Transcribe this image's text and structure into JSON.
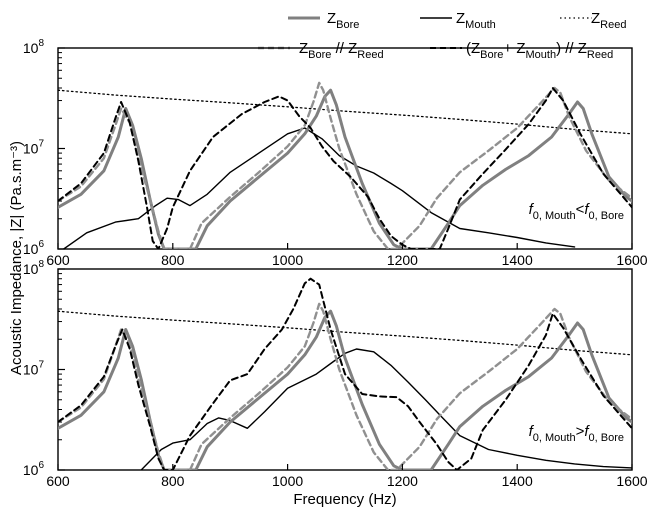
{
  "chart_data": {
    "type": "line",
    "xlabel": "Frequency (Hz)",
    "ylabel": "Acoustic Impedance, |Z| (Pa.s.m⁻³)",
    "xlim": [
      600,
      1600
    ],
    "ylim": [
      1000000,
      100000000
    ],
    "yscale": "log",
    "grid": false,
    "legend_placement": "top",
    "xticks": [
      "600",
      "800",
      "1000",
      "1200",
      "1400",
      "1600"
    ],
    "yticks": [
      {
        "base": "10",
        "exp": "6",
        "value": 1000000
      },
      {
        "base": "10",
        "exp": "7",
        "value": 10000000
      },
      {
        "base": "10",
        "exp": "8",
        "value": 100000000
      }
    ],
    "legend": [
      {
        "key": "bore",
        "text": "Z",
        "sub": "Bore",
        "suffix": "",
        "color": "#808080",
        "dash": "",
        "width": 3
      },
      {
        "key": "mouth",
        "text": "Z",
        "sub": "Mouth",
        "suffix": "",
        "color": "#000000",
        "dash": "",
        "width": 1.4
      },
      {
        "key": "reed",
        "text": "Z",
        "sub": "Reed",
        "suffix": "",
        "color": "#000000",
        "dash": "1.5,3",
        "width": 1.3
      },
      {
        "key": "bore_reed",
        "text": "Z",
        "sub": "Bore",
        "suffix": " // Z",
        "sub2": "Reed",
        "color": "#909090",
        "dash": "6,4",
        "width": 2.4
      },
      {
        "key": "bm_reed",
        "text": "(Z",
        "sub": "Bore",
        "suffix": "+ Z",
        "sub2": "Mouth",
        "suffix2": ") // Z",
        "sub3": "Reed",
        "color": "#000000",
        "dash": "6,4",
        "width": 2
      }
    ],
    "panels": [
      {
        "annotation": {
          "f": "f",
          "sub1": "0, Mouth",
          "op": "<",
          "sub2": "0, Bore"
        },
        "series": [
          {
            "name": "Z_Reed",
            "x": [
              600,
              700,
              800,
              900,
              1000,
              1100,
              1200,
              1300,
              1400,
              1500,
              1600
            ],
            "y": [
              38000000,
              34000000,
              31000000,
              28500000,
              26000000,
              23500000,
              21500000,
              19500000,
              17500000,
              15500000,
              14000000
            ]
          },
          {
            "name": "Z_Mouth",
            "x": [
              610,
              650,
              700,
              740,
              770,
              790,
              810,
              830,
              860,
              900,
              950,
              1000,
              1030,
              1060,
              1090,
              1120,
              1150,
              1180,
              1200,
              1250,
              1300,
              1350,
              1400,
              1450,
              1500
            ],
            "y": [
              1000000,
              1450000,
              1850000,
              2000000,
              2700000,
              3200000,
              3100000,
              2700000,
              3500000,
              5800000,
              9000000,
              14000000,
              16000000,
              12500000,
              8500000,
              6700000,
              5700000,
              4500000,
              3800000,
              2300000,
              1600000,
              1450000,
              1300000,
              1150000,
              1050000
            ]
          },
          {
            "name": "Z_Bore",
            "x": [
              600,
              640,
              680,
              705,
              718,
              730,
              745,
              760,
              775,
              785,
              840,
              860,
              900,
              950,
              1000,
              1030,
              1050,
              1065,
              1075,
              1085,
              1100,
              1130,
              1160,
              1185,
              1200,
              1250,
              1280,
              1300,
              1340,
              1380,
              1420,
              1460,
              1490,
              1505,
              1515,
              1530,
              1560,
              1590,
              1600
            ],
            "y": [
              2600000,
              3500000,
              6000000,
              13000000,
              25000000,
              17000000,
              8000000,
              3200000,
              1400000,
              1000000,
              1000000,
              1700000,
              3000000,
              5200000,
              9000000,
              14000000,
              21000000,
              33000000,
              38000000,
              27000000,
              13000000,
              4500000,
              1800000,
              1100000,
              1000000,
              1000000,
              1800000,
              2700000,
              4300000,
              6200000,
              8500000,
              13000000,
              22000000,
              29000000,
              25000000,
              14000000,
              5200000,
              3300000,
              3000000
            ]
          },
          {
            "name": "Z_Bore // Z_Reed",
            "x": [
              600,
              640,
              680,
              700,
              710,
              725,
              740,
              760,
              775,
              785,
              830,
              850,
              900,
              950,
              1000,
              1030,
              1045,
              1055,
              1062,
              1075,
              1090,
              1120,
              1150,
              1175,
              1190,
              1230,
              1260,
              1300,
              1350,
              1400,
              1440,
              1465,
              1475,
              1490,
              1520,
              1560,
              1600
            ],
            "y": [
              3000000,
              4200000,
              8000000,
              17000000,
              25000000,
              18000000,
              8000000,
              3200000,
              1500000,
              1000000,
              1000000,
              1800000,
              3300000,
              5800000,
              10500000,
              17000000,
              29000000,
              45000000,
              38000000,
              20000000,
              10000000,
              3500000,
              1500000,
              1000000,
              1000000,
              1700000,
              3200000,
              5800000,
              9500000,
              16000000,
              28000000,
              40000000,
              36000000,
              21000000,
              9500000,
              4800000,
              3200000
            ]
          },
          {
            "name": "(Z_Bore + Z_Mouth) // Z_Reed",
            "x": [
              600,
              640,
              680,
              700,
              710,
              725,
              740,
              755,
              765,
              775,
              790,
              800,
              830,
              870,
              920,
              960,
              985,
              1000,
              1020,
              1040,
              1060,
              1080,
              1110,
              1140,
              1160,
              1180,
              1200,
              1215,
              1225,
              1265,
              1280,
              1300,
              1340,
              1380,
              1420,
              1450,
              1462,
              1480,
              1510,
              1550,
              1600
            ],
            "y": [
              3000000,
              4500000,
              9000000,
              20000000,
              29000000,
              18000000,
              7500000,
              2600000,
              1200000,
              1000000,
              1600000,
              2600000,
              6000000,
              13000000,
              22000000,
              29000000,
              33000000,
              30000000,
              21000000,
              16000000,
              10500000,
              7500000,
              5200000,
              3300000,
              2000000,
              1350000,
              1100000,
              1000000,
              1000000,
              1000000,
              1600000,
              3100000,
              5600000,
              9800000,
              17500000,
              30000000,
              40000000,
              30000000,
              14000000,
              5600000,
              2600000
            ]
          }
        ]
      },
      {
        "annotation": {
          "f": "f",
          "sub1": "0, Mouth",
          "op": ">",
          "sub2": "0, Bore"
        },
        "series": [
          {
            "name": "Z_Reed",
            "x": [
              600,
              700,
              800,
              900,
              1000,
              1100,
              1200,
              1300,
              1400,
              1500,
              1600
            ],
            "y": [
              38000000,
              34000000,
              31000000,
              28500000,
              26000000,
              23500000,
              21500000,
              19500000,
              17500000,
              15500000,
              14000000
            ]
          },
          {
            "name": "Z_Mouth",
            "x": [
              745,
              780,
              800,
              830,
              860,
              880,
              900,
              930,
              960,
              1000,
              1050,
              1080,
              1100,
              1120,
              1150,
              1180,
              1210,
              1240,
              1270,
              1300,
              1350,
              1400,
              1450,
              1500,
              1550,
              1600
            ],
            "y": [
              1000000,
              1600000,
              1850000,
              2000000,
              2900000,
              3300000,
              3100000,
              2600000,
              3800000,
              6500000,
              9000000,
              12000000,
              14500000,
              16000000,
              15000000,
              11000000,
              7500000,
              5000000,
              3300000,
              2200000,
              1600000,
              1400000,
              1250000,
              1150000,
              1080000,
              1050000
            ]
          },
          {
            "name": "Z_Bore",
            "x": [
              600,
              640,
              680,
              705,
              718,
              730,
              745,
              760,
              775,
              785,
              840,
              860,
              900,
              950,
              1000,
              1030,
              1050,
              1065,
              1075,
              1085,
              1100,
              1130,
              1160,
              1185,
              1200,
              1250,
              1280,
              1300,
              1340,
              1380,
              1420,
              1460,
              1490,
              1505,
              1515,
              1530,
              1560,
              1590,
              1600
            ],
            "y": [
              2600000,
              3500000,
              6000000,
              13000000,
              25000000,
              17000000,
              8000000,
              3200000,
              1400000,
              1000000,
              1000000,
              1700000,
              3000000,
              5200000,
              9000000,
              14000000,
              21000000,
              33000000,
              38000000,
              27000000,
              13000000,
              4500000,
              1800000,
              1100000,
              1000000,
              1000000,
              1800000,
              2700000,
              4300000,
              6200000,
              8500000,
              13000000,
              22000000,
              29000000,
              25000000,
              14000000,
              5200000,
              3300000,
              3000000
            ]
          },
          {
            "name": "Z_Bore // Z_Reed",
            "x": [
              600,
              640,
              680,
              700,
              710,
              725,
              740,
              760,
              775,
              785,
              830,
              850,
              900,
              950,
              1000,
              1030,
              1045,
              1055,
              1062,
              1075,
              1090,
              1120,
              1150,
              1175,
              1190,
              1230,
              1260,
              1300,
              1350,
              1400,
              1440,
              1465,
              1475,
              1490,
              1520,
              1560,
              1600
            ],
            "y": [
              3000000,
              4200000,
              8000000,
              17000000,
              25000000,
              18000000,
              8000000,
              3200000,
              1500000,
              1000000,
              1000000,
              1800000,
              3300000,
              5800000,
              10500000,
              17000000,
              29000000,
              45000000,
              38000000,
              20000000,
              10000000,
              3500000,
              1500000,
              1000000,
              1000000,
              1700000,
              3200000,
              5800000,
              9500000,
              16000000,
              28000000,
              40000000,
              36000000,
              21000000,
              9500000,
              4800000,
              3200000
            ]
          },
          {
            "name": "(Z_Bore + Z_Mouth) // Z_Reed",
            "x": [
              600,
              640,
              680,
              700,
              712,
              725,
              740,
              760,
              775,
              785,
              800,
              830,
              870,
              900,
              930,
              960,
              990,
              1010,
              1030,
              1040,
              1055,
              1075,
              1100,
              1130,
              1160,
              1190,
              1210,
              1230,
              1260,
              1280,
              1295,
              1320,
              1340,
              1380,
              1420,
              1450,
              1462,
              1480,
              1510,
              1550,
              1600
            ],
            "y": [
              3000000,
              4400000,
              8500000,
              17000000,
              25000000,
              16000000,
              7000000,
              2800000,
              1300000,
              1000000,
              1000000,
              2200000,
              4600000,
              7800000,
              9000000,
              16000000,
              25000000,
              40000000,
              72000000,
              80000000,
              70000000,
              25000000,
              9000000,
              5700000,
              5400000,
              5300000,
              4300000,
              3000000,
              1800000,
              1200000,
              1000000,
              1300000,
              2500000,
              5000000,
              11000000,
              22000000,
              36000000,
              26000000,
              13000000,
              5500000,
              2600000
            ]
          }
        ]
      }
    ]
  }
}
